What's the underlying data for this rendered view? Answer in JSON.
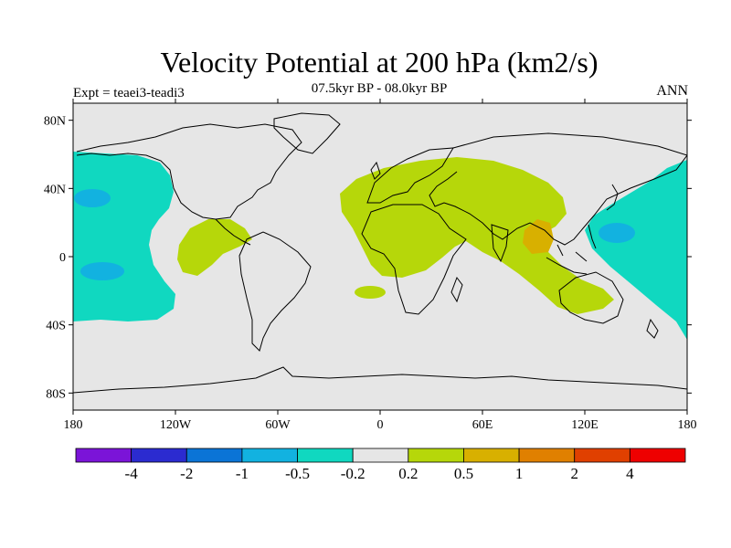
{
  "header": {
    "title": "Velocity Potential at 200 hPa (km2/s)",
    "subtitle": "07.5kyr BP - 08.0kyr BP",
    "experiment": "Expt = teaei3-teadi3",
    "season": "ANN"
  },
  "map": {
    "projection": "cylindrical-equidistant",
    "lon_range": [
      -180,
      180
    ],
    "lat_range": [
      -90,
      90
    ],
    "background_color": "#e6e6e6",
    "coastline_color": "#000000",
    "lat_ticks": [
      {
        "lat": 80,
        "label": "80N"
      },
      {
        "lat": 40,
        "label": "40N"
      },
      {
        "lat": 0,
        "label": "0"
      },
      {
        "lat": -40,
        "label": "40S"
      },
      {
        "lat": -80,
        "label": "80S"
      }
    ],
    "lon_ticks": [
      {
        "lon": -180,
        "label": "180"
      },
      {
        "lon": -120,
        "label": "120W"
      },
      {
        "lon": -60,
        "label": "60W"
      },
      {
        "lon": 0,
        "label": "0"
      },
      {
        "lon": 60,
        "label": "60E"
      },
      {
        "lon": 120,
        "label": "120E"
      },
      {
        "lon": 180,
        "label": "180"
      }
    ]
  },
  "colorbar": {
    "colors": [
      "#7b14d8",
      "#2b2bd0",
      "#0b74d6",
      "#12b2e0",
      "#10d8c0",
      "#e6e6e6",
      "#b6d70a",
      "#d8b000",
      "#e08000",
      "#e04000",
      "#ee0000"
    ],
    "labels": [
      "-4",
      "-2",
      "-1",
      "-0.5",
      "-0.2",
      "0.2",
      "0.5",
      "1",
      "2",
      "4"
    ]
  }
}
